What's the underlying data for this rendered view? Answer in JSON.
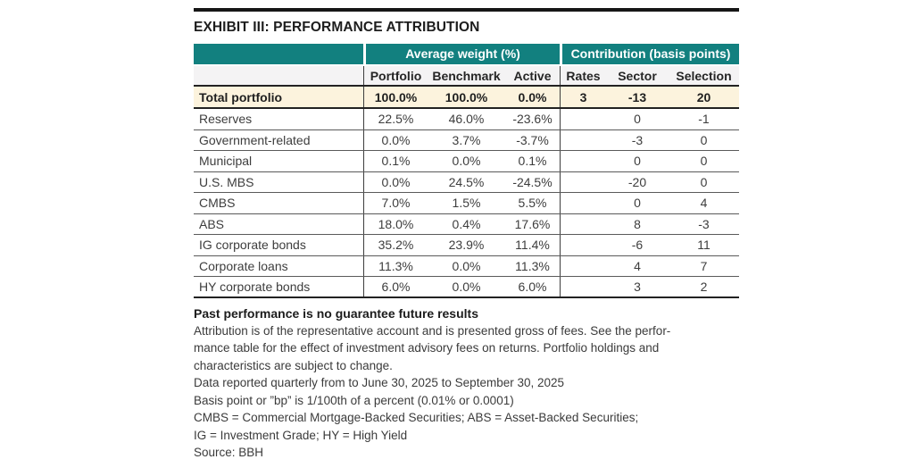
{
  "title": "EXHIBIT III: PERFORMANCE ATTRIBUTION",
  "table": {
    "group_headers": {
      "weight": "Average weight (%)",
      "contribution": "Contribution (basis points)"
    },
    "columns": [
      "Portfolio",
      "Benchmark",
      "Active",
      "Rates",
      "Sector",
      "Selection"
    ],
    "total_row": {
      "label": "Total portfolio",
      "cells": [
        "100.0%",
        "100.0%",
        "0.0%",
        "3",
        "-13",
        "20"
      ]
    },
    "rows": [
      {
        "label": "Reserves",
        "cells": [
          "22.5%",
          "46.0%",
          "-23.6%",
          "",
          "0",
          "-1"
        ]
      },
      {
        "label": "Government-related",
        "cells": [
          "0.0%",
          "3.7%",
          "-3.7%",
          "",
          "-3",
          "0"
        ]
      },
      {
        "label": "Municipal",
        "cells": [
          "0.1%",
          "0.0%",
          "0.1%",
          "",
          "0",
          "0"
        ]
      },
      {
        "label": "U.S. MBS",
        "cells": [
          "0.0%",
          "24.5%",
          "-24.5%",
          "",
          "-20",
          "0"
        ]
      },
      {
        "label": "CMBS",
        "cells": [
          "7.0%",
          "1.5%",
          "5.5%",
          "",
          "0",
          "4"
        ]
      },
      {
        "label": "ABS",
        "cells": [
          "18.0%",
          "0.4%",
          "17.6%",
          "",
          "8",
          "-3"
        ]
      },
      {
        "label": "IG corporate bonds",
        "cells": [
          "35.2%",
          "23.9%",
          "11.4%",
          "",
          "-6",
          "11"
        ]
      },
      {
        "label": "Corporate loans",
        "cells": [
          "11.3%",
          "0.0%",
          "11.3%",
          "",
          "4",
          "7"
        ]
      },
      {
        "label": "HY corporate bonds",
        "cells": [
          "6.0%",
          "0.0%",
          "6.0%",
          "",
          "3",
          "2"
        ]
      }
    ]
  },
  "footnotes": {
    "disclaimer_bold": "Past performance is no guarantee future results",
    "lines": [
      "Attribution is of the representative account and is presented gross of fees. See the perfor-",
      "mance table for the effect of investment advisory fees on returns. Portfolio holdings and",
      "characteristics are subject to change.",
      "Data reported quarterly from to June 30, 2025 to September 30, 2025",
      "Basis point or ”bp” is 1/100th of a percent (0.01% or 0.0001)",
      "CMBS = Commercial Mortgage-Backed Securities; ABS = Asset-Backed Securities;",
      "IG = Investment Grade; HY = High Yield",
      "Source: BBH"
    ]
  },
  "colors": {
    "header_teal": "#12807f",
    "total_row_cream": "#fcf3dd",
    "subheader_gray": "#f4f3f4",
    "rule_dark": "#222222",
    "top_bar_black": "#161616"
  }
}
